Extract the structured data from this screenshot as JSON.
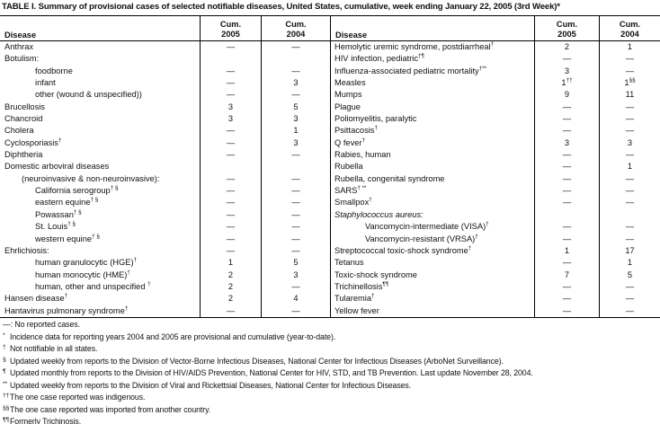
{
  "title": "TABLE I. Summary of provisional cases of selected notifiable diseases, United States, cumulative, week ending January 22, 2005 (3rd Week)*",
  "table": {
    "headers": {
      "disease": "Disease",
      "cum": "Cum.",
      "y2005": "2005",
      "y2004": "2004"
    },
    "left_rows": [
      {
        "name": "Anthrax",
        "ind": 0,
        "c05": "—",
        "c04": "—"
      },
      {
        "name": "Botulism:",
        "ind": 0,
        "c05": "",
        "c04": ""
      },
      {
        "name": "foodborne",
        "ind": 2,
        "c05": "—",
        "c04": "—"
      },
      {
        "name": "infant",
        "ind": 2,
        "c05": "—",
        "c04": "3"
      },
      {
        "name": "other (wound & unspecified))",
        "ind": 2,
        "c05": "—",
        "c04": "—"
      },
      {
        "name": "Brucellosis",
        "ind": 0,
        "c05": "3",
        "c04": "5"
      },
      {
        "name": "Chancroid",
        "ind": 0,
        "c05": "3",
        "c04": "3"
      },
      {
        "name": "Cholera",
        "ind": 0,
        "c05": "—",
        "c04": "1"
      },
      {
        "name": "Cyclosporiasis",
        "sup": "†",
        "ind": 0,
        "c05": "—",
        "c04": "3"
      },
      {
        "name": "Diphtheria",
        "ind": 0,
        "c05": "—",
        "c04": "—"
      },
      {
        "name": "Domestic arboviral diseases",
        "ind": 0,
        "c05": "",
        "c04": ""
      },
      {
        "name": "(neuroinvasive & non-neuroinvasive):",
        "ind": 1,
        "c05": "—",
        "c04": "—"
      },
      {
        "name": "California serogroup",
        "sup": "† §",
        "ind": 2,
        "c05": "—",
        "c04": "—"
      },
      {
        "name": "eastern equine",
        "sup": "† §",
        "ind": 2,
        "c05": "—",
        "c04": "—"
      },
      {
        "name": "Powassan",
        "sup": "† §",
        "ind": 2,
        "c05": "—",
        "c04": "—"
      },
      {
        "name": "St. Louis",
        "sup": "† §",
        "ind": 2,
        "c05": "—",
        "c04": "—"
      },
      {
        "name": "western equine",
        "sup": "† §",
        "ind": 2,
        "c05": "—",
        "c04": "—"
      },
      {
        "name": "Ehrlichiosis:",
        "ind": 0,
        "c05": "—",
        "c04": "—"
      },
      {
        "name": "human granulocytic (HGE)",
        "sup": "†",
        "ind": 2,
        "c05": "1",
        "c04": "5"
      },
      {
        "name": "human monocytic (HME)",
        "sup": "†",
        "ind": 2,
        "c05": "2",
        "c04": "3"
      },
      {
        "name": "human, other and unspecified ",
        "sup": "†",
        "ind": 2,
        "c05": "2",
        "c04": "—"
      },
      {
        "name": "Hansen disease",
        "sup": "†",
        "ind": 0,
        "c05": "2",
        "c04": "4"
      },
      {
        "name": "Hantavirus pulmonary syndrome",
        "sup": "†",
        "ind": 0,
        "c05": "—",
        "c04": "—"
      }
    ],
    "right_rows": [
      {
        "name": "Hemolytic uremic syndrome, postdiarrheal",
        "sup": "†",
        "ind": 0,
        "c05": "2",
        "c04": "1"
      },
      {
        "name": "HIV infection, pediatric",
        "sup": "†¶",
        "ind": 0,
        "c05": "—",
        "c04": "—"
      },
      {
        "name": "Influenza-associated pediatric mortality",
        "sup": "†**",
        "ind": 0,
        "c05": "3",
        "c04": "—"
      },
      {
        "name": "Measles",
        "ind": 0,
        "c05": "1",
        "c05s": "††",
        "c04": "1",
        "c04s": "§§"
      },
      {
        "name": "Mumps",
        "ind": 0,
        "c05": "9",
        "c04": "11"
      },
      {
        "name": "Plague",
        "ind": 0,
        "c05": "—",
        "c04": "—"
      },
      {
        "name": "Poliomyelitis, paralytic",
        "ind": 0,
        "c05": "—",
        "c04": "—"
      },
      {
        "name": "Psittacosis",
        "sup": "†",
        "ind": 0,
        "c05": "—",
        "c04": "—"
      },
      {
        "name": "Q fever",
        "sup": "†",
        "ind": 0,
        "c05": "3",
        "c04": "3"
      },
      {
        "name": "Rabies, human",
        "ind": 0,
        "c05": "—",
        "c04": "—"
      },
      {
        "name": "Rubella",
        "ind": 0,
        "c05": "—",
        "c04": "1"
      },
      {
        "name": "Rubella, congenital syndrome",
        "ind": 0,
        "c05": "—",
        "c04": "—"
      },
      {
        "name": "SARS",
        "sup": "† **",
        "ind": 0,
        "c05": "—",
        "c04": "—"
      },
      {
        "name": "Smallpox",
        "sup": "†",
        "ind": 0,
        "c05": "—",
        "c04": "—"
      },
      {
        "name": "Staphylococcus aureus:",
        "it": true,
        "ind": 0,
        "c05": "",
        "c04": ""
      },
      {
        "name": "Vancomycin-intermediate (VISA)",
        "sup": "†",
        "ind": 2,
        "c05": "—",
        "c04": "—"
      },
      {
        "name": "Vancomycin-resistant (VRSA)",
        "sup": "†",
        "ind": 2,
        "c05": "—",
        "c04": "—"
      },
      {
        "name": "Streptococcal toxic-shock syndrome",
        "sup": "†",
        "ind": 0,
        "c05": "1",
        "c04": "17"
      },
      {
        "name": "Tetanus",
        "ind": 0,
        "c05": "—",
        "c04": "1"
      },
      {
        "name": "Toxic-shock syndrome",
        "ind": 0,
        "c05": "7",
        "c04": "5"
      },
      {
        "name": "Trichinellosis",
        "sup": "¶¶",
        "ind": 0,
        "c05": "—",
        "c04": "—"
      },
      {
        "name": "Tularemia",
        "sup": "†",
        "ind": 0,
        "c05": "—",
        "c04": "—"
      },
      {
        "name": "Yellow fever",
        "ind": 0,
        "c05": "—",
        "c04": "—"
      }
    ]
  },
  "legend": {
    "dash_note": "—: No reported cases."
  },
  "footnotes": [
    {
      "marker": "*",
      "text": "Incidence data for reporting years 2004 and 2005 are provisional and cumulative (year-to-date)."
    },
    {
      "marker": "†",
      "text": "Not notifiable in all states."
    },
    {
      "marker": "§",
      "text": "Updated weekly from reports to the Division of Vector-Borne Infectious Diseases, National Center for Infectious Diseases (ArboNet Surveillance)."
    },
    {
      "marker": "¶",
      "text": "Updated monthly from reports to the Division of HIV/AIDS Prevention, National Center for HIV, STD, and TB Prevention. Last update November 28, 2004."
    },
    {
      "marker": "**",
      "text": "Updated weekly from reports to the Division of Viral and Rickettsial Diseases, National Center for Infectious Diseases."
    },
    {
      "marker": "††",
      "text": "The one case reported was indigenous."
    },
    {
      "marker": "§§",
      "text": "The one case reported was imported from another country."
    },
    {
      "marker": "¶¶",
      "text": "Formerly Trichinosis."
    }
  ]
}
